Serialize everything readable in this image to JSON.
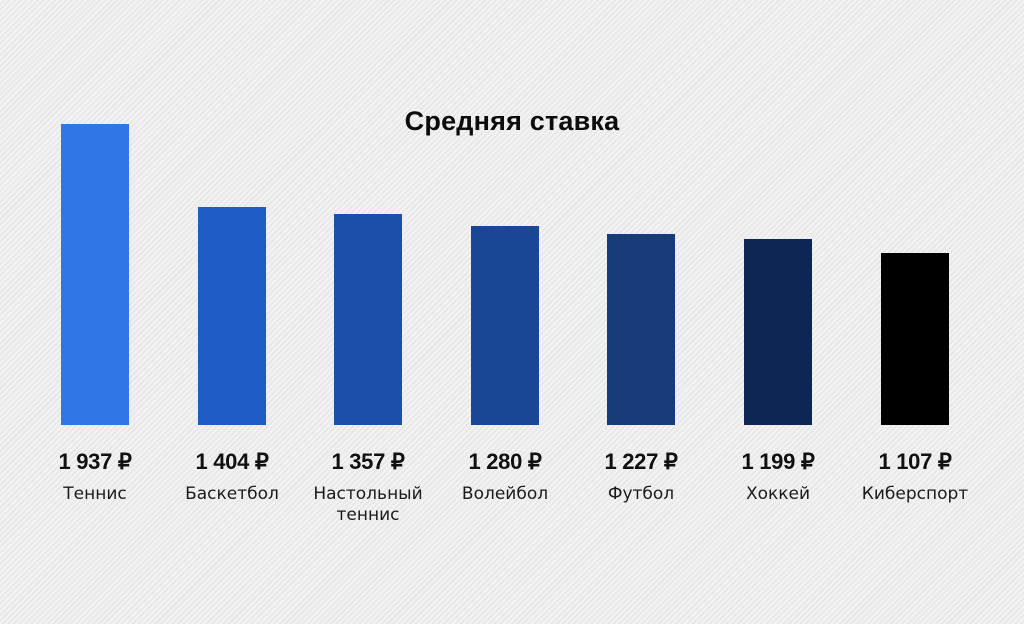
{
  "chart_data": {
    "type": "bar",
    "title": "Средняя ставка",
    "categories": [
      "Теннис",
      "Баскетбол",
      "Настольный\nтеннис",
      "Волейбол",
      "Футбол",
      "Хоккей",
      "Киберспорт"
    ],
    "values": [
      1937,
      1404,
      1357,
      1280,
      1227,
      1199,
      1107
    ],
    "value_labels": [
      "1 937 ₽",
      "1 404 ₽",
      "1 357 ₽",
      "1 280 ₽",
      "1 227 ₽",
      "1 199 ₽",
      "1 107 ₽"
    ],
    "unit": "₽",
    "colors": [
      "#3076e4",
      "#1f5cc6",
      "#1c4fa9",
      "#1a4696",
      "#183b7a",
      "#0e2654",
      "#000000"
    ],
    "xlabel": "",
    "ylabel": "",
    "ylim": [
      0,
      1937
    ],
    "grid": false,
    "legend": "none"
  }
}
